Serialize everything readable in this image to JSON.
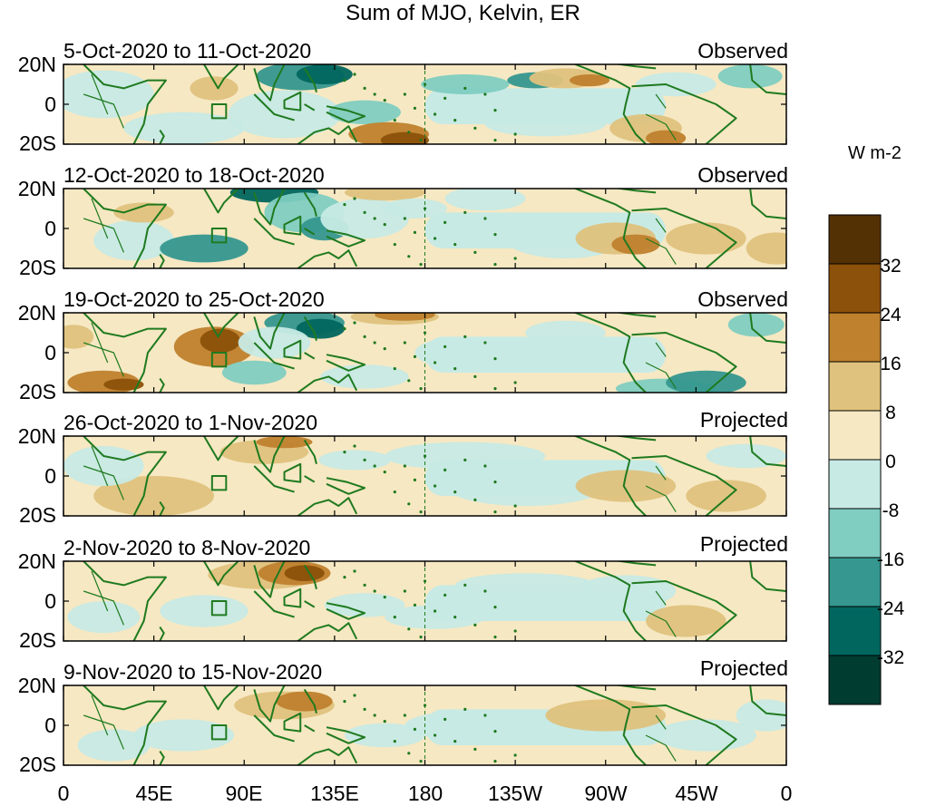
{
  "title": "Sum of MJO, Kelvin, ER",
  "panels": [
    {
      "period": "5-Oct-2020 to 11-Oct-2020",
      "status": "Observed"
    },
    {
      "period": "12-Oct-2020 to 18-Oct-2020",
      "status": "Observed"
    },
    {
      "period": "19-Oct-2020 to 25-Oct-2020",
      "status": "Observed"
    },
    {
      "period": "26-Oct-2020 to 1-Nov-2020",
      "status": "Projected"
    },
    {
      "period": "2-Nov-2020 to 8-Nov-2020",
      "status": "Projected"
    },
    {
      "period": "9-Nov-2020 to 15-Nov-2020",
      "status": "Projected"
    }
  ],
  "lat_ticks": [
    "20N",
    "0",
    "20S"
  ],
  "lon_ticks": [
    "0",
    "45E",
    "90E",
    "135E",
    "180",
    "135W",
    "90W",
    "45W",
    "0"
  ],
  "colorbar": {
    "units": "W m-2",
    "labels": [
      "32",
      "24",
      "16",
      "8",
      "0",
      "-8",
      "-16",
      "-24",
      "-32"
    ],
    "colors": [
      "#543005",
      "#8c510a",
      "#bf812d",
      "#dfc27d",
      "#f6e8c3",
      "#c7eae5",
      "#80cdc1",
      "#35978f",
      "#01665e",
      "#003c30"
    ]
  },
  "colors": {
    "coastline": "#1f7a1f",
    "positive_light": "#f6e8c3",
    "negative_light": "#c7eae5"
  }
}
